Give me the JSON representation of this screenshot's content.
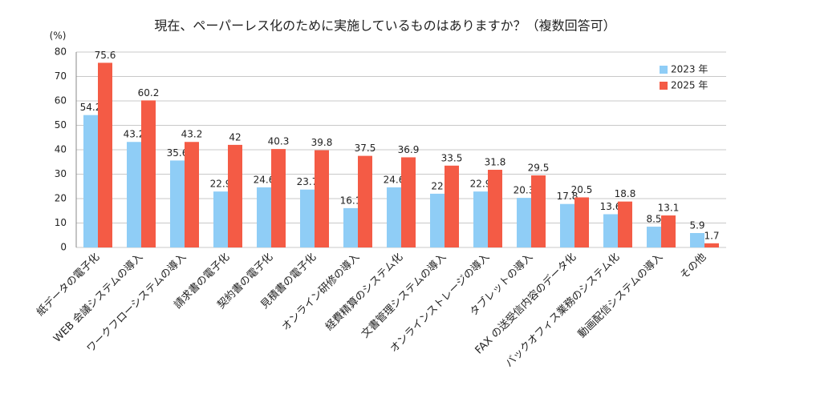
{
  "chart_data": {
    "type": "bar",
    "title": "現在、ペーパーレス化のために実施しているものはありますか？（複数回答可）",
    "ylabel": "(%)",
    "categories": [
      "紙データの電子化",
      "WEB 会議システムの導入",
      "ワークフローシステムの導入",
      "請求書の電子化",
      "契約書の電子化",
      "見積書の電子化",
      "オンライン研修の導入",
      "経費精算のシステム化",
      "文書管理システムの導入",
      "オンラインストレージの導入",
      "タブレットの導入",
      "FAX の送受信内容のデータ化",
      "バックオフィス業務のシステム化",
      "動画配信システムの導入",
      "その他"
    ],
    "series": [
      {
        "name": "2023 年",
        "color": "#8fcdf6",
        "values": [
          54.2,
          43.2,
          35.6,
          22.9,
          24.6,
          23.7,
          16.1,
          24.6,
          22,
          22.9,
          20.3,
          17.8,
          13.6,
          8.5,
          5.9
        ]
      },
      {
        "name": "2025 年",
        "color": "#f45b45",
        "values": [
          75.6,
          60.2,
          43.2,
          42,
          40.3,
          39.8,
          37.5,
          36.9,
          33.5,
          31.8,
          29.5,
          20.5,
          18.8,
          13.1,
          1.7
        ]
      }
    ],
    "ylim": [
      0,
      80
    ],
    "yticks": [
      0,
      10,
      20,
      30,
      40,
      50,
      60,
      70,
      80
    ],
    "grid": true,
    "legend": "upper right"
  }
}
